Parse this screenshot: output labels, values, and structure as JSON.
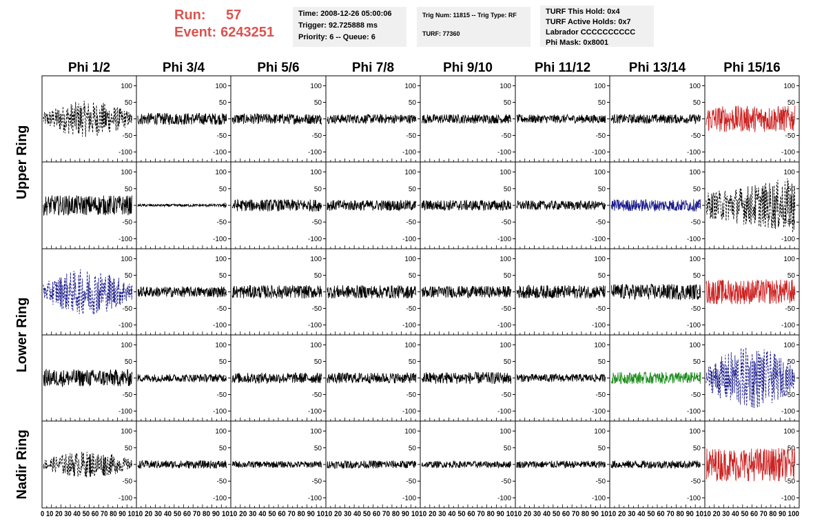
{
  "header": {
    "run_label": "Run:",
    "run_value": "57",
    "event_label": "Event:",
    "event_value": "6243251",
    "time_box": {
      "line1": "Time: 2008-12-26 05:00:06",
      "line2": "Trigger: 92.725888 ms",
      "line3": "Priority: 6 -- Queue: 6"
    },
    "trig_box": {
      "line1": "Trig Num: 11815 -- Trig Type: RF",
      "line2": "TURF: 77360"
    },
    "turf_box": {
      "line1": "TURF This Hold: 0x4",
      "line2": "TURF Active Holds: 0x7",
      "line3": "Labrador CCCCCCCCCC",
      "line4": "Phi Mask: 0x8001"
    }
  },
  "columns": [
    "Phi 1/2",
    "Phi 3/4",
    "Phi 5/6",
    "Phi 7/8",
    "Phi 9/10",
    "Phi 11/12",
    "Phi 13/14",
    "Phi 15/16"
  ],
  "rows": [
    "Upper Ring",
    "Lower Ring",
    "Nadir Ring"
  ],
  "colors": {
    "black": "#000000",
    "red": "#cc2222",
    "blue": "#1a1a8c",
    "green": "#1a8c1a"
  },
  "chart_data": {
    "type": "line",
    "xlim": [
      0,
      100
    ],
    "ylim": [
      -130,
      130
    ],
    "y_ticks": [
      -100,
      -50,
      0,
      50,
      100
    ],
    "x_ticks": [
      0,
      10,
      20,
      30,
      40,
      50,
      60,
      70,
      80,
      90,
      100
    ],
    "x_tick_labels_by_panel": [
      "0 10 20 30 40 50 60 70 80 90 10",
      "10 20 30 40 50 60 70 80 90 10",
      "10 20 30 40 50 60 70 80 90 10",
      "10 20 30 40 50 60 70 80 90 10",
      "10 20 30 40 50 60 70 80 90 10",
      "10 20 30 40 50 60 70 80 90 10",
      "10 20 30 40 50 60 70 80 90 10",
      "10 20 30 40 50 60 70 80 90 100"
    ],
    "panels": [
      {
        "row": 0,
        "col": 0,
        "color": "black",
        "style": "dashed",
        "amp": 55,
        "envelope": "bump"
      },
      {
        "row": 0,
        "col": 1,
        "color": "black",
        "style": "solid",
        "amp": 18,
        "envelope": "flat"
      },
      {
        "row": 0,
        "col": 2,
        "color": "black",
        "style": "solid",
        "amp": 16,
        "envelope": "flat"
      },
      {
        "row": 0,
        "col": 3,
        "color": "black",
        "style": "solid",
        "amp": 14,
        "envelope": "flat"
      },
      {
        "row": 0,
        "col": 4,
        "color": "black",
        "style": "solid",
        "amp": 14,
        "envelope": "flat"
      },
      {
        "row": 0,
        "col": 5,
        "color": "black",
        "style": "solid",
        "amp": 13,
        "envelope": "flat"
      },
      {
        "row": 0,
        "col": 6,
        "color": "black",
        "style": "solid",
        "amp": 14,
        "envelope": "flat"
      },
      {
        "row": 0,
        "col": 7,
        "color": "red",
        "style": "solid",
        "amp": 40,
        "envelope": "flat"
      },
      {
        "row": 1,
        "col": 0,
        "color": "black",
        "style": "solid",
        "amp": 30,
        "envelope": "flat"
      },
      {
        "row": 1,
        "col": 1,
        "color": "black",
        "style": "solid",
        "amp": 4,
        "envelope": "flat"
      },
      {
        "row": 1,
        "col": 2,
        "color": "black",
        "style": "solid",
        "amp": 18,
        "envelope": "flat"
      },
      {
        "row": 1,
        "col": 3,
        "color": "black",
        "style": "solid",
        "amp": 16,
        "envelope": "flat"
      },
      {
        "row": 1,
        "col": 4,
        "color": "black",
        "style": "solid",
        "amp": 16,
        "envelope": "flat"
      },
      {
        "row": 1,
        "col": 5,
        "color": "black",
        "style": "solid",
        "amp": 14,
        "envelope": "flat"
      },
      {
        "row": 1,
        "col": 6,
        "color": "blue",
        "style": "solid",
        "amp": 18,
        "envelope": "flat"
      },
      {
        "row": 1,
        "col": 7,
        "color": "black",
        "style": "dashed",
        "amp": 85,
        "envelope": "grow"
      },
      {
        "row": 2,
        "col": 0,
        "color": "blue",
        "style": "dashed",
        "amp": 70,
        "envelope": "bump"
      },
      {
        "row": 2,
        "col": 1,
        "color": "black",
        "style": "solid",
        "amp": 16,
        "envelope": "flat"
      },
      {
        "row": 2,
        "col": 2,
        "color": "black",
        "style": "solid",
        "amp": 20,
        "envelope": "flat"
      },
      {
        "row": 2,
        "col": 3,
        "color": "black",
        "style": "solid",
        "amp": 20,
        "envelope": "flat"
      },
      {
        "row": 2,
        "col": 4,
        "color": "black",
        "style": "solid",
        "amp": 18,
        "envelope": "flat"
      },
      {
        "row": 2,
        "col": 5,
        "color": "black",
        "style": "solid",
        "amp": 20,
        "envelope": "flat"
      },
      {
        "row": 2,
        "col": 6,
        "color": "black",
        "style": "solid",
        "amp": 24,
        "envelope": "flat"
      },
      {
        "row": 2,
        "col": 7,
        "color": "red",
        "style": "solid",
        "amp": 38,
        "envelope": "flat"
      },
      {
        "row": 3,
        "col": 0,
        "color": "black",
        "style": "solid",
        "amp": 26,
        "envelope": "flat"
      },
      {
        "row": 3,
        "col": 1,
        "color": "black",
        "style": "solid",
        "amp": 12,
        "envelope": "flat"
      },
      {
        "row": 3,
        "col": 2,
        "color": "black",
        "style": "solid",
        "amp": 16,
        "envelope": "flat"
      },
      {
        "row": 3,
        "col": 3,
        "color": "black",
        "style": "solid",
        "amp": 16,
        "envelope": "flat"
      },
      {
        "row": 3,
        "col": 4,
        "color": "black",
        "style": "solid",
        "amp": 18,
        "envelope": "flat"
      },
      {
        "row": 3,
        "col": 5,
        "color": "black",
        "style": "solid",
        "amp": 12,
        "envelope": "flat"
      },
      {
        "row": 3,
        "col": 6,
        "color": "green",
        "style": "solid",
        "amp": 18,
        "envelope": "flat"
      },
      {
        "row": 3,
        "col": 7,
        "color": "blue",
        "style": "dashed",
        "amp": 95,
        "envelope": "bump"
      },
      {
        "row": 4,
        "col": 0,
        "color": "black",
        "style": "dashed",
        "amp": 40,
        "envelope": "bump"
      },
      {
        "row": 4,
        "col": 1,
        "color": "black",
        "style": "solid",
        "amp": 12,
        "envelope": "flat"
      },
      {
        "row": 4,
        "col": 2,
        "color": "black",
        "style": "solid",
        "amp": 10,
        "envelope": "flat"
      },
      {
        "row": 4,
        "col": 3,
        "color": "black",
        "style": "solid",
        "amp": 12,
        "envelope": "flat"
      },
      {
        "row": 4,
        "col": 4,
        "color": "black",
        "style": "solid",
        "amp": 10,
        "envelope": "flat"
      },
      {
        "row": 4,
        "col": 5,
        "color": "black",
        "style": "solid",
        "amp": 11,
        "envelope": "flat"
      },
      {
        "row": 4,
        "col": 6,
        "color": "black",
        "style": "solid",
        "amp": 12,
        "envelope": "flat"
      },
      {
        "row": 4,
        "col": 7,
        "color": "red",
        "style": "solid",
        "amp": 50,
        "envelope": "flat"
      }
    ]
  }
}
